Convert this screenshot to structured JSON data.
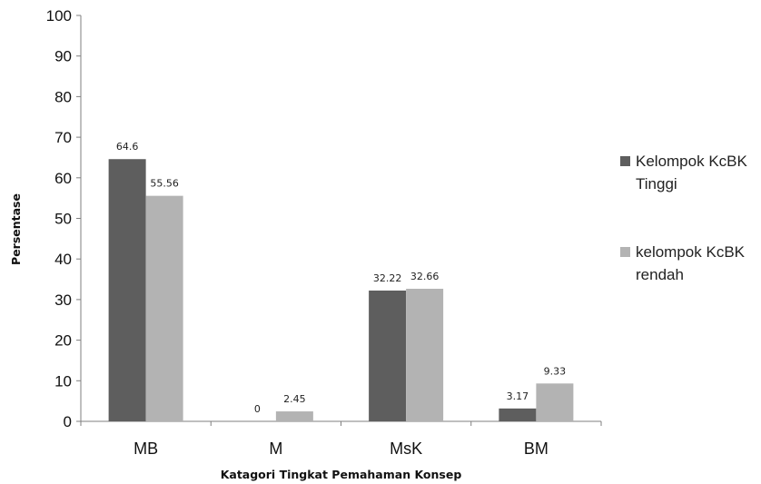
{
  "chart_data": {
    "type": "bar",
    "categories": [
      "MB",
      "M",
      "MsK",
      "BM"
    ],
    "series": [
      {
        "name": "Kelompok KcBK Tinggi",
        "legend_lines": [
          "Kelompok KcBK",
          "Tinggi"
        ],
        "values": [
          64.6,
          0,
          32.22,
          3.17
        ],
        "labels": [
          "64.6",
          "0",
          "32.22",
          "3.17"
        ],
        "color": "#5e5e5e"
      },
      {
        "name": "kelompok KcBK rendah",
        "legend_lines": [
          "kelompok KcBK",
          "rendah"
        ],
        "values": [
          55.56,
          2.45,
          32.66,
          9.33
        ],
        "labels": [
          "55.56",
          "2.45",
          "32.66",
          "9.33"
        ],
        "color": "#b3b3b3"
      }
    ],
    "xlabel": "Katagori  Tingkat Pemahaman Konsep",
    "ylabel": "Persentase",
    "ylim": [
      0,
      100
    ],
    "yticks": [
      0,
      10,
      20,
      30,
      40,
      50,
      60,
      70,
      80,
      90,
      100
    ],
    "grid": false,
    "legend_position": "right"
  }
}
